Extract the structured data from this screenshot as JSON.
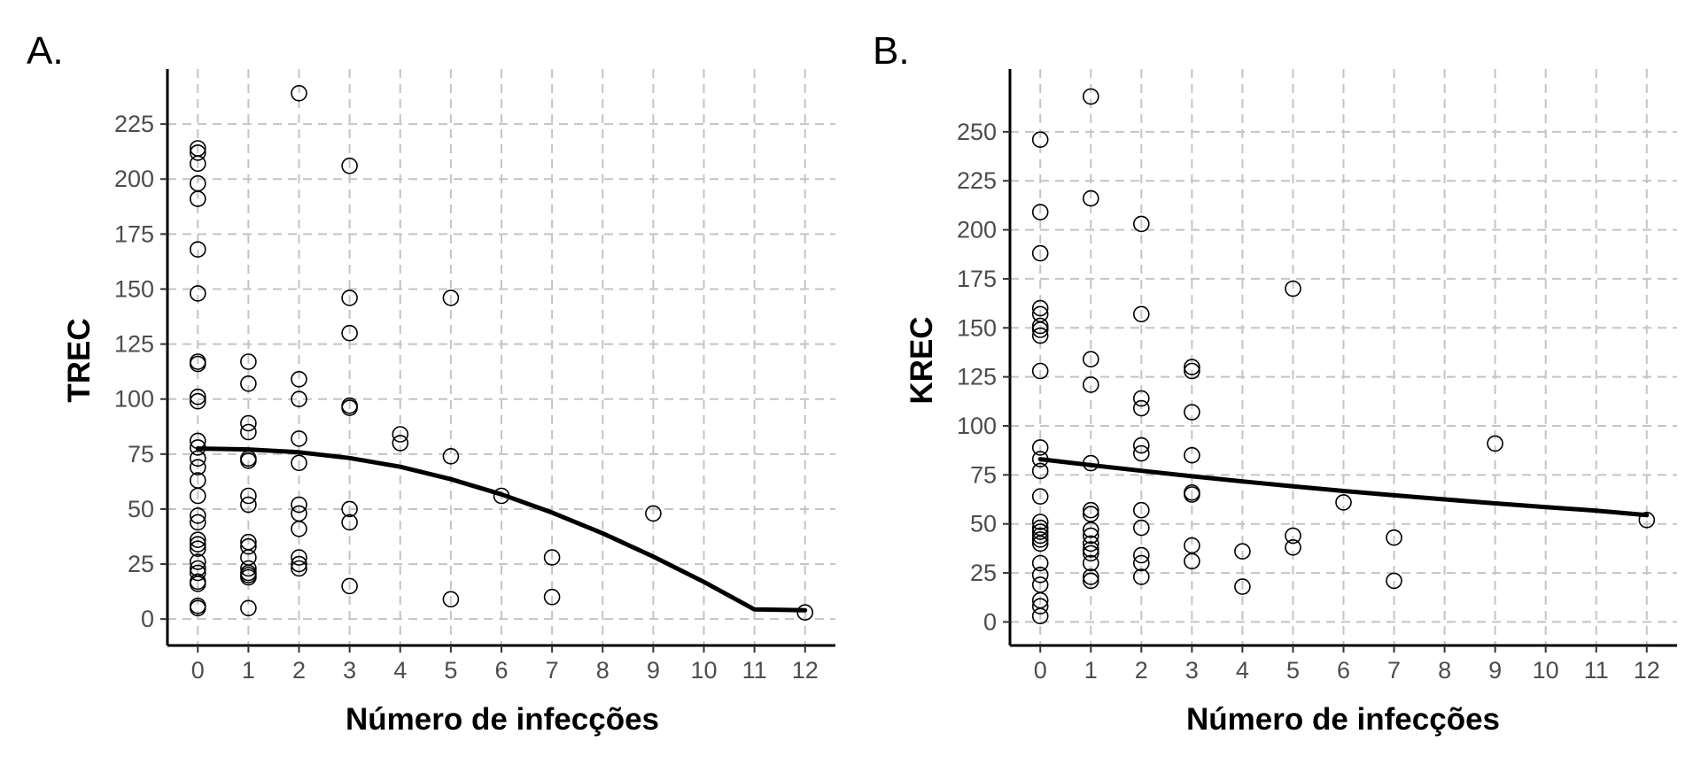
{
  "chart_data": [
    {
      "panel": "A.",
      "type": "scatter",
      "xlabel": "Número de infecções",
      "ylabel": "TREC",
      "xlim": [
        -0.6,
        12.6
      ],
      "ylim": [
        -12,
        250
      ],
      "x_ticks": [
        "0",
        "1",
        "2",
        "3",
        "4",
        "5",
        "6",
        "7",
        "8",
        "9",
        "10",
        "11",
        "12"
      ],
      "y_ticks": [
        "0",
        "25",
        "50",
        "75",
        "100",
        "125",
        "150",
        "175",
        "200",
        "225"
      ],
      "grid": true,
      "points": [
        [
          0,
          214
        ],
        [
          0,
          212
        ],
        [
          0,
          207
        ],
        [
          0,
          198
        ],
        [
          0,
          191
        ],
        [
          0,
          168
        ],
        [
          0,
          148
        ],
        [
          0,
          117
        ],
        [
          0,
          116
        ],
        [
          0,
          101
        ],
        [
          0,
          99
        ],
        [
          0,
          81
        ],
        [
          0,
          78
        ],
        [
          0,
          73
        ],
        [
          0,
          69
        ],
        [
          0,
          63
        ],
        [
          0,
          56
        ],
        [
          0,
          47
        ],
        [
          0,
          44
        ],
        [
          0,
          36
        ],
        [
          0,
          34
        ],
        [
          0,
          32
        ],
        [
          0,
          26
        ],
        [
          0,
          23
        ],
        [
          0,
          21
        ],
        [
          0,
          17
        ],
        [
          0,
          16
        ],
        [
          0,
          6
        ],
        [
          0,
          5
        ],
        [
          1,
          117
        ],
        [
          1,
          107
        ],
        [
          1,
          89
        ],
        [
          1,
          85
        ],
        [
          1,
          73
        ],
        [
          1,
          72
        ],
        [
          1,
          56
        ],
        [
          1,
          52
        ],
        [
          1,
          35
        ],
        [
          1,
          33
        ],
        [
          1,
          28
        ],
        [
          1,
          23
        ],
        [
          1,
          21
        ],
        [
          1,
          20
        ],
        [
          1,
          19
        ],
        [
          1,
          5
        ],
        [
          2,
          239
        ],
        [
          2,
          109
        ],
        [
          2,
          100
        ],
        [
          2,
          82
        ],
        [
          2,
          71
        ],
        [
          2,
          52
        ],
        [
          2,
          48
        ],
        [
          2,
          41
        ],
        [
          2,
          28
        ],
        [
          2,
          25
        ],
        [
          2,
          23
        ],
        [
          3,
          206
        ],
        [
          3,
          146
        ],
        [
          3,
          130
        ],
        [
          3,
          97
        ],
        [
          3,
          96
        ],
        [
          3,
          50
        ],
        [
          3,
          44
        ],
        [
          3,
          15
        ],
        [
          4,
          84
        ],
        [
          4,
          80
        ],
        [
          5,
          146
        ],
        [
          5,
          74
        ],
        [
          5,
          9
        ],
        [
          6,
          56
        ],
        [
          7,
          28
        ],
        [
          7,
          10
        ],
        [
          9,
          48
        ],
        [
          12,
          3
        ]
      ],
      "fit_line": [
        [
          0,
          77.5
        ],
        [
          1,
          77.1
        ],
        [
          2,
          75.8
        ],
        [
          3,
          73.2
        ],
        [
          4,
          69.2
        ],
        [
          5,
          63.6
        ],
        [
          6,
          56.7
        ],
        [
          7,
          48.4
        ],
        [
          8,
          39.0
        ],
        [
          9,
          28.4
        ],
        [
          10,
          16.9
        ],
        [
          11,
          4.4
        ],
        [
          12,
          4.0
        ]
      ]
    },
    {
      "panel": "B.",
      "type": "scatter",
      "xlabel": "Número de infecções",
      "ylabel": "KREC",
      "xlim": [
        -0.6,
        12.6
      ],
      "ylim": [
        -12,
        282
      ],
      "x_ticks": [
        "0",
        "1",
        "2",
        "3",
        "4",
        "5",
        "6",
        "7",
        "8",
        "9",
        "10",
        "11",
        "12"
      ],
      "y_ticks": [
        "0",
        "25",
        "50",
        "75",
        "100",
        "125",
        "150",
        "175",
        "200",
        "225",
        "250"
      ],
      "grid": true,
      "points": [
        [
          0,
          246
        ],
        [
          0,
          209
        ],
        [
          0,
          188
        ],
        [
          0,
          160
        ],
        [
          0,
          157
        ],
        [
          0,
          151
        ],
        [
          0,
          149
        ],
        [
          0,
          146
        ],
        [
          0,
          128
        ],
        [
          0,
          89
        ],
        [
          0,
          83
        ],
        [
          0,
          77
        ],
        [
          0,
          64
        ],
        [
          0,
          51
        ],
        [
          0,
          48
        ],
        [
          0,
          46
        ],
        [
          0,
          44
        ],
        [
          0,
          42
        ],
        [
          0,
          40
        ],
        [
          0,
          30
        ],
        [
          0,
          24
        ],
        [
          0,
          19
        ],
        [
          0,
          11
        ],
        [
          0,
          8
        ],
        [
          0,
          3
        ],
        [
          1,
          268
        ],
        [
          1,
          216
        ],
        [
          1,
          134
        ],
        [
          1,
          121
        ],
        [
          1,
          81
        ],
        [
          1,
          57
        ],
        [
          1,
          55
        ],
        [
          1,
          47
        ],
        [
          1,
          44
        ],
        [
          1,
          40
        ],
        [
          1,
          37
        ],
        [
          1,
          35
        ],
        [
          1,
          30
        ],
        [
          1,
          23
        ],
        [
          1,
          21
        ],
        [
          2,
          203
        ],
        [
          2,
          157
        ],
        [
          2,
          114
        ],
        [
          2,
          109
        ],
        [
          2,
          90
        ],
        [
          2,
          86
        ],
        [
          2,
          57
        ],
        [
          2,
          48
        ],
        [
          2,
          34
        ],
        [
          2,
          30
        ],
        [
          2,
          23
        ],
        [
          3,
          130
        ],
        [
          3,
          128
        ],
        [
          3,
          107
        ],
        [
          3,
          85
        ],
        [
          3,
          66
        ],
        [
          3,
          65
        ],
        [
          3,
          39
        ],
        [
          3,
          31
        ],
        [
          4,
          36
        ],
        [
          4,
          18
        ],
        [
          5,
          170
        ],
        [
          5,
          44
        ],
        [
          5,
          38
        ],
        [
          6,
          61
        ],
        [
          7,
          43
        ],
        [
          7,
          21
        ],
        [
          9,
          91
        ],
        [
          12,
          52
        ]
      ],
      "fit_line": [
        [
          0,
          83.0
        ],
        [
          1,
          80.0
        ],
        [
          2,
          77.1
        ],
        [
          3,
          74.3
        ],
        [
          4,
          71.7
        ],
        [
          5,
          69.2
        ],
        [
          6,
          66.8
        ],
        [
          7,
          64.6
        ],
        [
          8,
          62.5
        ],
        [
          9,
          60.5
        ],
        [
          10,
          58.6
        ],
        [
          11,
          56.8
        ],
        [
          12,
          54.5
        ]
      ]
    }
  ]
}
